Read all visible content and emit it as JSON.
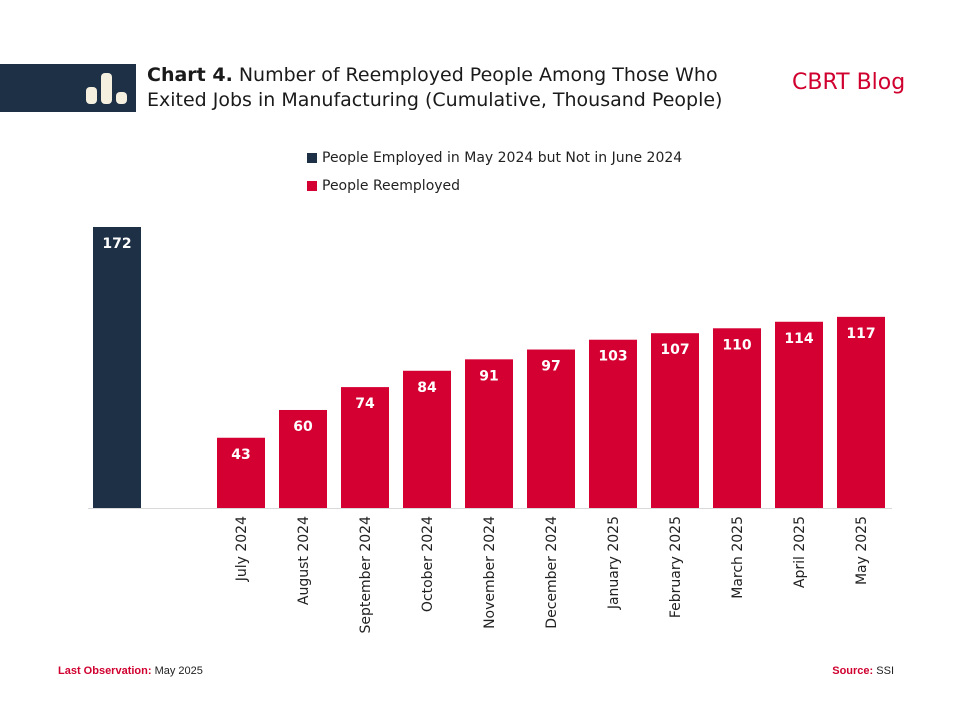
{
  "header": {
    "chart_number": "Chart 4.",
    "title": "Number of Reemployed People Among Those Who Exited Jobs in Manufacturing (Cumulative, Thousand People)",
    "brand": "CBRT Blog",
    "icon": "bar-chart-icon"
  },
  "colors": {
    "navy": "#1d3046",
    "red": "#d50032",
    "brand_red": "#d0002f"
  },
  "legend": [
    {
      "label": "People Employed in May 2024 but Not in June 2024",
      "color": "#1d3046"
    },
    {
      "label": "People Reemployed",
      "color": "#d50032"
    }
  ],
  "footer": {
    "last_observation_key": "Last Observation:",
    "last_observation_value": "May 2025",
    "source_key": "Source:",
    "source_value": "SSI"
  },
  "chart_data": {
    "type": "bar",
    "title": "Number of Reemployed People Among Those Who Exited Jobs in Manufacturing (Cumulative, Thousand People)",
    "xlabel": "",
    "ylabel": "",
    "categories": [
      "",
      "",
      "July 2024",
      "August 2024",
      "September 2024",
      "October 2024",
      "November 2024",
      "December 2024",
      "January 2025",
      "February 2025",
      "March 2025",
      "April 2025",
      "May 2025"
    ],
    "series": [
      {
        "name": "People Employed in May 2024 but Not in June 2024",
        "color": "#1d3046",
        "values": [
          172,
          null,
          null,
          null,
          null,
          null,
          null,
          null,
          null,
          null,
          null,
          null,
          null
        ]
      },
      {
        "name": "People Reemployed",
        "color": "#d50032",
        "values": [
          null,
          null,
          43,
          60,
          74,
          84,
          91,
          97,
          103,
          107,
          110,
          114,
          117
        ]
      }
    ],
    "ylim": [
      0,
      172
    ],
    "grid": false,
    "legend_position": "top-center",
    "data_labels": true
  }
}
